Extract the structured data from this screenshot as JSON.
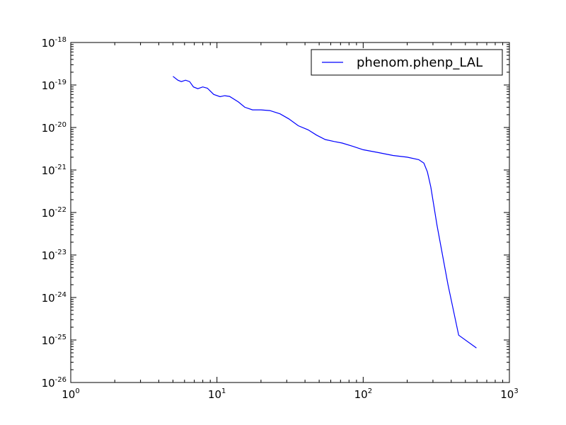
{
  "chart_data": {
    "type": "line",
    "title": "",
    "xlabel": "",
    "ylabel": "",
    "xscale": "log",
    "yscale": "log",
    "xlim": [
      1,
      1000
    ],
    "ylim": [
      1e-26,
      1e-18
    ],
    "grid": false,
    "legend_position": "top-right",
    "x_ticks": [
      {
        "base": "10",
        "exp": "0",
        "value": 1
      },
      {
        "base": "10",
        "exp": "1",
        "value": 10
      },
      {
        "base": "10",
        "exp": "2",
        "value": 100
      },
      {
        "base": "10",
        "exp": "3",
        "value": 1000
      }
    ],
    "y_ticks": [
      {
        "base": "10",
        "exp": "-18",
        "value": 1e-18
      },
      {
        "base": "10",
        "exp": "-19",
        "value": 1e-19
      },
      {
        "base": "10",
        "exp": "-20",
        "value": 1e-20
      },
      {
        "base": "10",
        "exp": "-21",
        "value": 1e-21
      },
      {
        "base": "10",
        "exp": "-22",
        "value": 1e-22
      },
      {
        "base": "10",
        "exp": "-23",
        "value": 1e-23
      },
      {
        "base": "10",
        "exp": "-24",
        "value": 1e-24
      },
      {
        "base": "10",
        "exp": "-25",
        "value": 1e-25
      },
      {
        "base": "10",
        "exp": "-26",
        "value": 1e-26
      }
    ],
    "series": [
      {
        "name": "phenom.phenp_LAL",
        "color": "#0000ff",
        "points": [
          [
            5.0,
            1.6e-19
          ],
          [
            5.4,
            1.3e-19
          ],
          [
            5.7,
            1.2e-19
          ],
          [
            6.1,
            1.3e-19
          ],
          [
            6.5,
            1.2e-19
          ],
          [
            6.9,
            9e-20
          ],
          [
            7.4,
            8.2e-20
          ],
          [
            8.0,
            9e-20
          ],
          [
            8.6,
            8.4e-20
          ],
          [
            9.5,
            6e-20
          ],
          [
            10.5,
            5.3e-20
          ],
          [
            11.3,
            5.6e-20
          ],
          [
            12.2,
            5.4e-20
          ],
          [
            14.0,
            4e-20
          ],
          [
            15.5,
            3e-20
          ],
          [
            17.5,
            2.6e-20
          ],
          [
            20.0,
            2.6e-20
          ],
          [
            23.0,
            2.5e-20
          ],
          [
            27.0,
            2.1e-20
          ],
          [
            31.0,
            1.6e-20
          ],
          [
            36.0,
            1.1e-20
          ],
          [
            42.0,
            8.8e-21
          ],
          [
            48.0,
            6.6e-21
          ],
          [
            55.0,
            5.2e-21
          ],
          [
            63.0,
            4.7e-21
          ],
          [
            72.0,
            4.3e-21
          ],
          [
            85.0,
            3.6e-21
          ],
          [
            100.0,
            3e-21
          ],
          [
            125.0,
            2.6e-21
          ],
          [
            160.0,
            2.2e-21
          ],
          [
            200.0,
            2e-21
          ],
          [
            240.0,
            1.75e-21
          ],
          [
            260.0,
            1.45e-21
          ],
          [
            275.0,
            9e-22
          ],
          [
            290.0,
            4e-22
          ],
          [
            320.0,
            5e-23
          ],
          [
            380.0,
            2e-24
          ],
          [
            450.0,
            1.3e-25
          ],
          [
            595.0,
            6.5e-26
          ]
        ]
      }
    ]
  }
}
